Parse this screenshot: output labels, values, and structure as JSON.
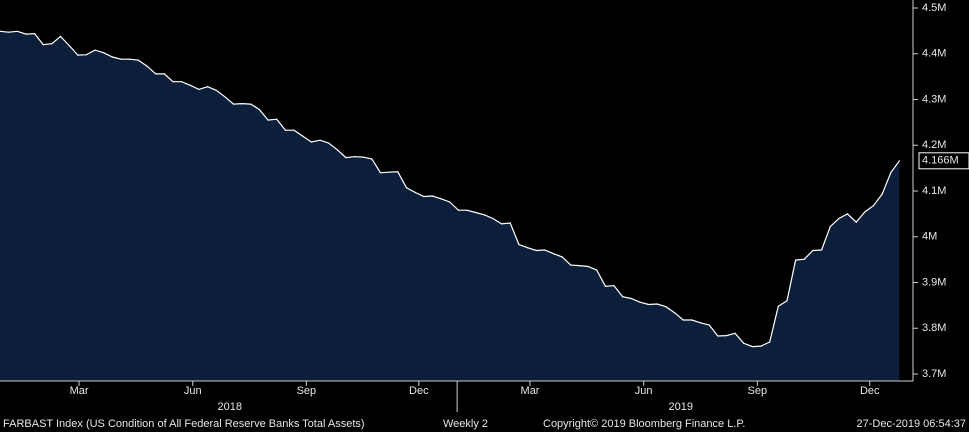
{
  "chart_data": {
    "type": "area",
    "title": "",
    "xlabel": "",
    "ylabel": "",
    "ylim": [
      3.7,
      4.5
    ],
    "y_unit": "M",
    "y_ticks": [
      {
        "value": 3.7,
        "label": "3.7M"
      },
      {
        "value": 3.8,
        "label": "3.8M"
      },
      {
        "value": 3.9,
        "label": "3.9M"
      },
      {
        "value": 4.0,
        "label": "4M"
      },
      {
        "value": 4.1,
        "label": "4.1M"
      },
      {
        "value": 4.2,
        "label": "4.2M"
      },
      {
        "value": 4.3,
        "label": "4.3M"
      },
      {
        "value": 4.4,
        "label": "4.4M"
      },
      {
        "value": 4.5,
        "label": "4.5M"
      }
    ],
    "x_ticks": [
      {
        "date": "2018-03-01",
        "label": "Mar"
      },
      {
        "date": "2018-06-01",
        "label": "Jun"
      },
      {
        "date": "2018-09-01",
        "label": "Sep"
      },
      {
        "date": "2018-12-01",
        "label": "Dec"
      },
      {
        "date": "2019-03-01",
        "label": "Mar"
      },
      {
        "date": "2019-06-01",
        "label": "Jun"
      },
      {
        "date": "2019-09-01",
        "label": "Sep"
      },
      {
        "date": "2019-12-01",
        "label": "Dec"
      }
    ],
    "year_labels": [
      {
        "date": "2018-07-01",
        "label": "2018"
      },
      {
        "date": "2019-07-01",
        "label": "2019"
      }
    ],
    "year_separators": [
      "2019-01-01"
    ],
    "x_range": [
      "2017-12-27",
      "2020-01-05"
    ],
    "last_value_label": "4.166M",
    "last_value": 4.166,
    "series": [
      {
        "color": "#ffffff",
        "fill": "#0b1f3b",
        "points": [
          [
            "2017-12-27",
            4.449
          ],
          [
            "2018-01-03",
            4.447
          ],
          [
            "2018-01-10",
            4.449
          ],
          [
            "2018-01-17",
            4.443
          ],
          [
            "2018-01-24",
            4.444
          ],
          [
            "2018-01-31",
            4.42
          ],
          [
            "2018-02-07",
            4.422
          ],
          [
            "2018-02-14",
            4.438
          ],
          [
            "2018-02-21",
            4.418
          ],
          [
            "2018-02-28",
            4.397
          ],
          [
            "2018-03-07",
            4.398
          ],
          [
            "2018-03-14",
            4.408
          ],
          [
            "2018-03-21",
            4.402
          ],
          [
            "2018-03-28",
            4.393
          ],
          [
            "2018-04-04",
            4.388
          ],
          [
            "2018-04-11",
            4.388
          ],
          [
            "2018-04-18",
            4.386
          ],
          [
            "2018-04-25",
            4.373
          ],
          [
            "2018-05-02",
            4.356
          ],
          [
            "2018-05-09",
            4.356
          ],
          [
            "2018-05-16",
            4.339
          ],
          [
            "2018-05-23",
            4.339
          ],
          [
            "2018-05-30",
            4.331
          ],
          [
            "2018-06-06",
            4.322
          ],
          [
            "2018-06-13",
            4.328
          ],
          [
            "2018-06-20",
            4.32
          ],
          [
            "2018-06-27",
            4.306
          ],
          [
            "2018-07-04",
            4.29
          ],
          [
            "2018-07-11",
            4.291
          ],
          [
            "2018-07-18",
            4.29
          ],
          [
            "2018-07-25",
            4.278
          ],
          [
            "2018-08-01",
            4.255
          ],
          [
            "2018-08-08",
            4.257
          ],
          [
            "2018-08-15",
            4.233
          ],
          [
            "2018-08-22",
            4.233
          ],
          [
            "2018-08-29",
            4.22
          ],
          [
            "2018-09-05",
            4.207
          ],
          [
            "2018-09-12",
            4.211
          ],
          [
            "2018-09-19",
            4.205
          ],
          [
            "2018-09-26",
            4.19
          ],
          [
            "2018-10-03",
            4.173
          ],
          [
            "2018-10-10",
            4.175
          ],
          [
            "2018-10-17",
            4.174
          ],
          [
            "2018-10-24",
            4.17
          ],
          [
            "2018-10-31",
            4.14
          ],
          [
            "2018-11-07",
            4.141
          ],
          [
            "2018-11-14",
            4.142
          ],
          [
            "2018-11-21",
            4.107
          ],
          [
            "2018-11-28",
            4.097
          ],
          [
            "2018-12-05",
            4.088
          ],
          [
            "2018-12-12",
            4.089
          ],
          [
            "2018-12-19",
            4.083
          ],
          [
            "2018-12-26",
            4.076
          ],
          [
            "2019-01-02",
            4.058
          ],
          [
            "2019-01-09",
            4.058
          ],
          [
            "2019-01-16",
            4.053
          ],
          [
            "2019-01-23",
            4.048
          ],
          [
            "2019-01-30",
            4.04
          ],
          [
            "2019-02-06",
            4.028
          ],
          [
            "2019-02-13",
            4.03
          ],
          [
            "2019-02-20",
            3.983
          ],
          [
            "2019-02-27",
            3.976
          ],
          [
            "2019-03-06",
            3.97
          ],
          [
            "2019-03-13",
            3.971
          ],
          [
            "2019-03-20",
            3.963
          ],
          [
            "2019-03-27",
            3.956
          ],
          [
            "2019-04-03",
            3.938
          ],
          [
            "2019-04-10",
            3.937
          ],
          [
            "2019-04-17",
            3.935
          ],
          [
            "2019-04-24",
            3.927
          ],
          [
            "2019-05-01",
            3.892
          ],
          [
            "2019-05-08",
            3.893
          ],
          [
            "2019-05-15",
            3.869
          ],
          [
            "2019-05-22",
            3.865
          ],
          [
            "2019-05-29",
            3.857
          ],
          [
            "2019-06-05",
            3.852
          ],
          [
            "2019-06-12",
            3.853
          ],
          [
            "2019-06-19",
            3.847
          ],
          [
            "2019-06-26",
            3.834
          ],
          [
            "2019-07-03",
            3.818
          ],
          [
            "2019-07-10",
            3.818
          ],
          [
            "2019-07-17",
            3.812
          ],
          [
            "2019-07-24",
            3.807
          ],
          [
            "2019-07-31",
            3.783
          ],
          [
            "2019-08-07",
            3.784
          ],
          [
            "2019-08-14",
            3.789
          ],
          [
            "2019-08-21",
            3.767
          ],
          [
            "2019-08-28",
            3.76
          ],
          [
            "2019-09-04",
            3.761
          ],
          [
            "2019-09-11",
            3.77
          ],
          [
            "2019-09-18",
            3.848
          ],
          [
            "2019-09-25",
            3.86
          ],
          [
            "2019-10-02",
            3.949
          ],
          [
            "2019-10-09",
            3.951
          ],
          [
            "2019-10-16",
            3.97
          ],
          [
            "2019-10-23",
            3.971
          ],
          [
            "2019-10-30",
            4.022
          ],
          [
            "2019-11-06",
            4.04
          ],
          [
            "2019-11-13",
            4.05
          ],
          [
            "2019-11-20",
            4.032
          ],
          [
            "2019-11-27",
            4.054
          ],
          [
            "2019-12-04",
            4.068
          ],
          [
            "2019-12-11",
            4.093
          ],
          [
            "2019-12-18",
            4.14
          ],
          [
            "2019-12-25",
            4.166
          ]
        ]
      }
    ]
  },
  "footer": {
    "ticker": "FARBAST Index (US Condition of All Federal Reserve Banks Total Assets)",
    "frequency": "Weekly 2",
    "copyright": "Copyright© 2019 Bloomberg Finance L.P.",
    "timestamp": "27-Dec-2019 06:54:37"
  }
}
